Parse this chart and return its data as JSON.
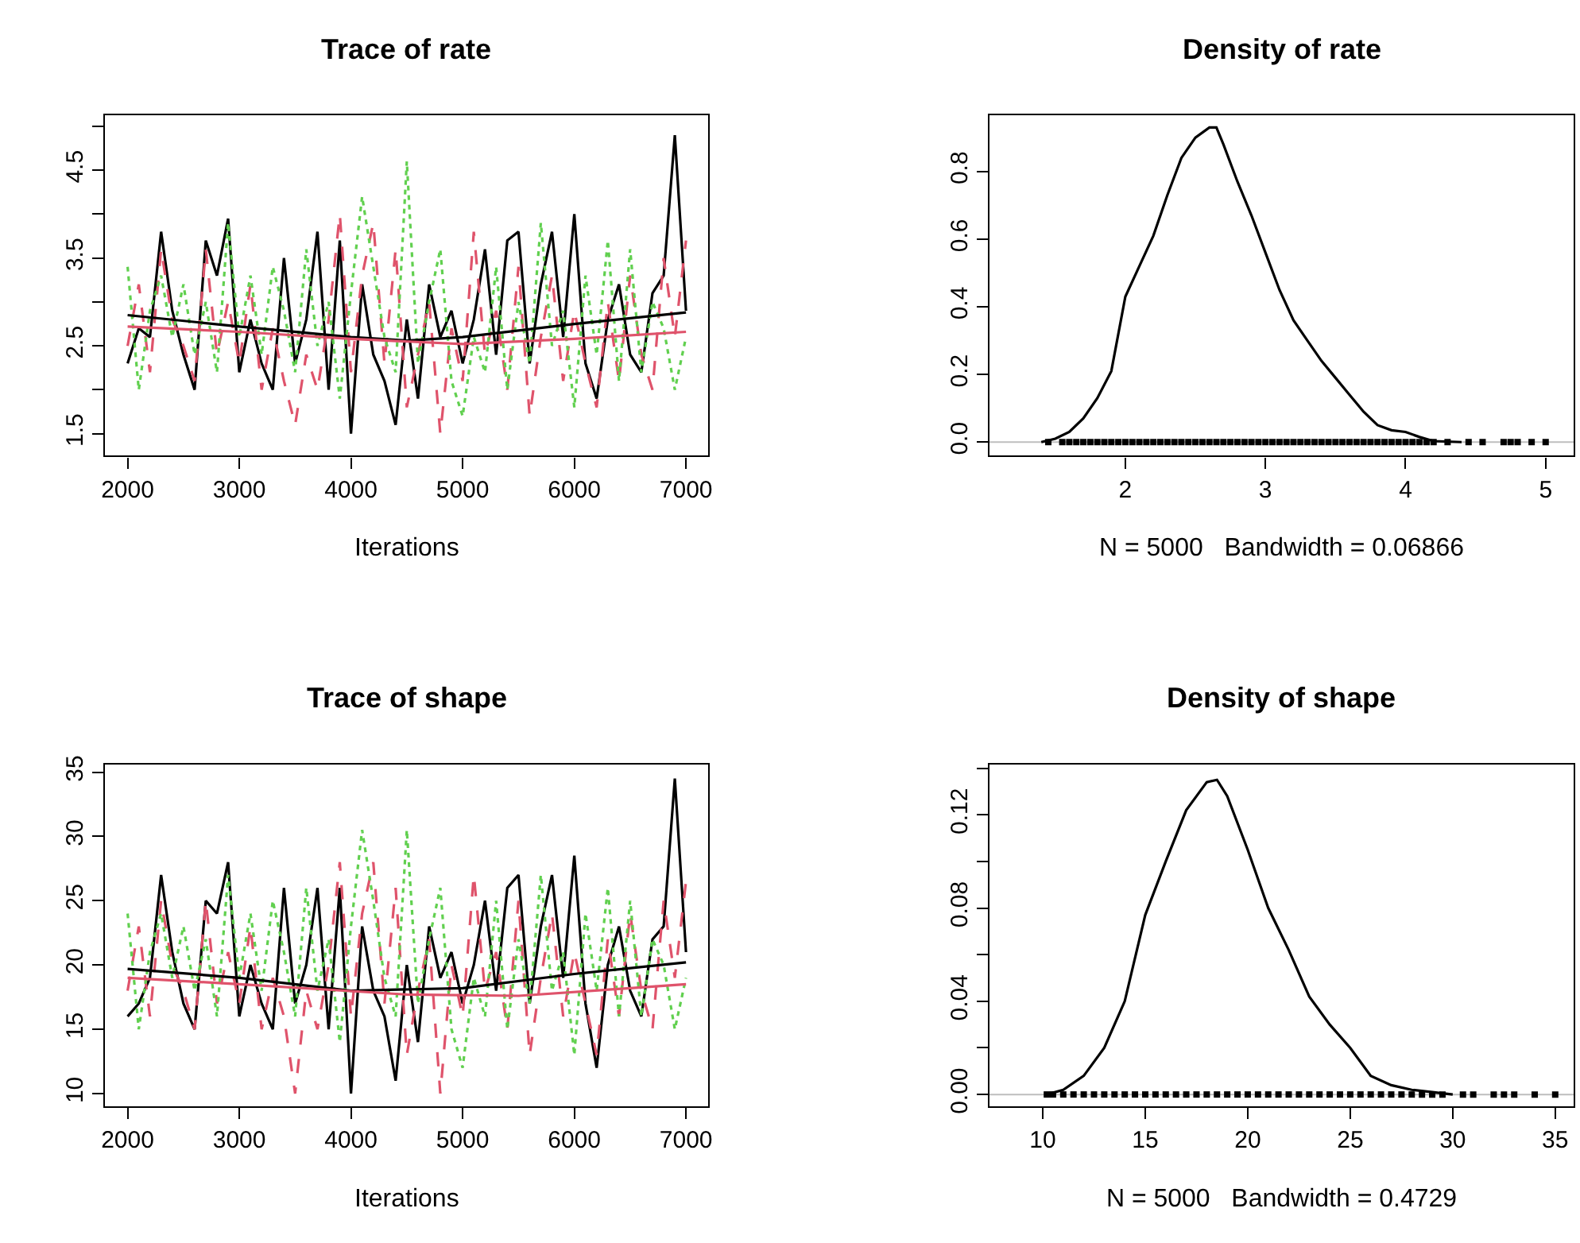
{
  "chart_data": [
    {
      "type": "line",
      "title": "Trace of rate",
      "xlabel": "Iterations",
      "x": [
        2000,
        2100,
        2200,
        2300,
        2400,
        2500,
        2600,
        2700,
        2800,
        2900,
        3000,
        3100,
        3200,
        3300,
        3400,
        3500,
        3600,
        3700,
        3800,
        3900,
        4000,
        4100,
        4200,
        4300,
        4400,
        4500,
        4600,
        4700,
        4800,
        4900,
        5000,
        5100,
        5200,
        5300,
        5400,
        5500,
        5600,
        5700,
        5800,
        5900,
        6000,
        6100,
        6200,
        6300,
        6400,
        6500,
        6600,
        6700,
        6800,
        6900,
        7000
      ],
      "series": [
        {
          "color": "#000000",
          "line_style": "solid",
          "values": [
            2.3,
            2.7,
            2.6,
            3.8,
            2.9,
            2.4,
            2.0,
            3.7,
            3.3,
            3.95,
            2.2,
            2.8,
            2.3,
            2.0,
            3.5,
            2.3,
            2.8,
            3.8,
            2.0,
            3.7,
            1.5,
            3.2,
            2.4,
            2.1,
            1.6,
            2.8,
            1.9,
            3.2,
            2.6,
            2.9,
            2.3,
            2.8,
            3.6,
            2.4,
            3.7,
            3.8,
            2.3,
            3.2,
            3.8,
            2.6,
            4.0,
            2.3,
            1.9,
            2.8,
            3.2,
            2.4,
            2.2,
            3.1,
            3.3,
            4.9,
            2.9
          ]
        },
        {
          "color": "#df536b",
          "line_style": "dashed",
          "values": [
            2.5,
            3.2,
            2.2,
            3.6,
            2.8,
            2.5,
            2.1,
            3.6,
            2.4,
            3.0,
            2.3,
            3.2,
            2.0,
            2.7,
            2.1,
            1.6,
            2.4,
            2.0,
            2.8,
            4.0,
            2.2,
            3.3,
            3.9,
            2.3,
            3.6,
            1.8,
            2.4,
            3.0,
            1.5,
            2.7,
            2.1,
            3.8,
            2.4,
            2.9,
            2.0,
            3.4,
            1.7,
            2.6,
            3.3,
            2.1,
            2.9,
            2.3,
            1.8,
            3.0,
            2.1,
            3.3,
            2.4,
            2.0,
            3.5,
            2.6,
            3.7
          ]
        },
        {
          "color": "#61d04f",
          "line_style": "dotted",
          "values": [
            3.4,
            2.0,
            2.9,
            3.3,
            2.6,
            3.2,
            2.4,
            3.0,
            2.2,
            3.9,
            2.6,
            3.3,
            2.4,
            3.4,
            2.9,
            2.2,
            3.6,
            2.5,
            3.0,
            1.9,
            3.1,
            4.2,
            3.4,
            2.6,
            2.2,
            4.6,
            2.3,
            3.0,
            3.6,
            2.1,
            1.7,
            2.6,
            2.2,
            3.4,
            2.0,
            3.0,
            2.3,
            3.9,
            2.5,
            2.9,
            1.8,
            3.3,
            2.4,
            3.7,
            2.1,
            3.6,
            2.2,
            3.0,
            2.7,
            2.0,
            2.6
          ]
        },
        {
          "x": [
            2000,
            3000,
            4000,
            4500,
            5000,
            6000,
            7000
          ],
          "color": "#000000",
          "line_style": "solid",
          "values": [
            2.85,
            2.72,
            2.6,
            2.56,
            2.6,
            2.75,
            2.88
          ]
        },
        {
          "x": [
            2000,
            3000,
            4000,
            5000,
            6000,
            7000
          ],
          "color": "#df536b",
          "line_style": "solid",
          "values": [
            2.72,
            2.66,
            2.58,
            2.52,
            2.58,
            2.66
          ]
        }
      ],
      "xlim": [
        1800,
        7200
      ],
      "xticks": [
        2000,
        3000,
        4000,
        5000,
        6000,
        7000
      ],
      "ylim": [
        1.25,
        5.13
      ],
      "yticks": [
        1.5,
        {
          "value": 2,
          "label": null
        },
        2.5,
        {
          "value": 3,
          "label": null
        },
        3.5,
        {
          "value": 4,
          "label": null
        },
        4.5,
        {
          "value": 5,
          "label": null
        }
      ]
    },
    {
      "type": "line",
      "title": "Density of rate",
      "xlabel": "N = 5000   Bandwidth = 0.06866",
      "series": [
        {
          "x": [
            1.4,
            1.5,
            1.6,
            1.7,
            1.8,
            1.9,
            2.0,
            2.1,
            2.2,
            2.3,
            2.4,
            2.5,
            2.6,
            2.65,
            2.7,
            2.8,
            2.9,
            3.0,
            3.1,
            3.2,
            3.3,
            3.4,
            3.5,
            3.6,
            3.7,
            3.8,
            3.9,
            4.0,
            4.1,
            4.2,
            4.4
          ],
          "color": "#000000",
          "values": [
            0,
            0.01,
            0.03,
            0.07,
            0.13,
            0.21,
            0.43,
            0.52,
            0.61,
            0.73,
            0.84,
            0.9,
            0.93,
            0.93,
            0.88,
            0.77,
            0.67,
            0.56,
            0.45,
            0.36,
            0.3,
            0.24,
            0.19,
            0.14,
            0.09,
            0.05,
            0.035,
            0.03,
            0.015,
            0.003,
            0
          ]
        },
        {
          "type": "scatter",
          "marker": "square",
          "x": [
            1.45,
            1.55,
            1.6,
            1.65,
            1.7,
            1.75,
            1.8,
            1.85,
            1.9,
            1.95,
            2.0,
            2.05,
            2.1,
            2.15,
            2.2,
            2.25,
            2.3,
            2.35,
            2.4,
            2.45,
            2.5,
            2.55,
            2.6,
            2.65,
            2.7,
            2.75,
            2.8,
            2.85,
            2.9,
            2.95,
            3.0,
            3.05,
            3.1,
            3.15,
            3.2,
            3.25,
            3.3,
            3.35,
            3.4,
            3.45,
            3.5,
            3.55,
            3.6,
            3.65,
            3.7,
            3.75,
            3.8,
            3.85,
            3.9,
            3.95,
            4.0,
            4.05,
            4.1,
            4.15,
            4.2,
            4.3,
            4.45,
            4.55,
            4.7,
            4.75,
            4.8,
            4.9,
            5.0
          ],
          "color": "#000000",
          "values": [
            0,
            0,
            0,
            0,
            0,
            0,
            0,
            0,
            0,
            0,
            0,
            0,
            0,
            0,
            0,
            0,
            0,
            0,
            0,
            0,
            0,
            0,
            0,
            0,
            0,
            0,
            0,
            0,
            0,
            0,
            0,
            0,
            0,
            0,
            0,
            0,
            0,
            0,
            0,
            0,
            0,
            0,
            0,
            0,
            0,
            0,
            0,
            0,
            0,
            0,
            0,
            0,
            0,
            0,
            0,
            0,
            0,
            0,
            0,
            0,
            0,
            0,
            0
          ]
        }
      ],
      "ref_lines": [
        {
          "axis": "y",
          "value": 0,
          "color": "#bebebe"
        }
      ],
      "xlim": [
        1.03,
        5.2
      ],
      "xticks": [
        2,
        3,
        4,
        5
      ],
      "ylim": [
        -0.04,
        0.967
      ],
      "yticks": [
        {
          "value": 0,
          "label": "0.0"
        },
        0.2,
        0.4,
        0.6,
        0.8
      ]
    },
    {
      "type": "line",
      "title": "Trace of shape",
      "xlabel": "Iterations",
      "x": [
        2000,
        2100,
        2200,
        2300,
        2400,
        2500,
        2600,
        2700,
        2800,
        2900,
        3000,
        3100,
        3200,
        3300,
        3400,
        3500,
        3600,
        3700,
        3800,
        3900,
        4000,
        4100,
        4200,
        4300,
        4400,
        4500,
        4600,
        4700,
        4800,
        4900,
        5000,
        5100,
        5200,
        5300,
        5400,
        5500,
        5600,
        5700,
        5800,
        5900,
        6000,
        6100,
        6200,
        6300,
        6400,
        6500,
        6600,
        6700,
        6800,
        6900,
        7000
      ],
      "series": [
        {
          "color": "#000000",
          "line_style": "solid",
          "values": [
            16,
            17,
            19,
            27,
            21,
            17,
            15,
            25,
            24,
            28,
            16,
            20,
            17,
            15,
            26,
            17,
            20,
            26,
            15,
            26,
            10,
            23,
            18,
            16,
            11,
            20,
            14,
            23,
            19,
            21,
            17,
            20,
            25,
            18,
            26,
            27,
            17,
            23,
            27,
            19,
            28.5,
            17,
            12,
            20,
            23,
            18,
            16,
            22,
            23,
            34.5,
            21
          ]
        },
        {
          "color": "#df536b",
          "line_style": "dashed",
          "values": [
            18,
            23,
            16,
            25,
            20,
            18,
            15,
            25,
            17,
            21,
            17,
            23,
            15,
            19,
            16,
            10,
            18,
            15,
            20,
            28,
            16,
            24,
            28,
            17,
            26,
            13,
            18,
            22,
            10,
            20,
            16,
            27,
            18,
            21,
            15,
            25,
            13,
            19,
            24,
            16,
            21,
            17,
            13,
            22,
            16,
            24,
            18,
            15,
            25,
            19,
            26.5
          ]
        },
        {
          "color": "#61d04f",
          "line_style": "dotted",
          "values": [
            24,
            15,
            21,
            24,
            19,
            23,
            18,
            22,
            16,
            27,
            19,
            24,
            18,
            25,
            21,
            16,
            26,
            18,
            22,
            14,
            23,
            30.5,
            25,
            19,
            16,
            30.5,
            17,
            22,
            26,
            15,
            12,
            19,
            16,
            25,
            15,
            22,
            17,
            27,
            18,
            21,
            13,
            24,
            18,
            26,
            16,
            25,
            16,
            22,
            20,
            15,
            19
          ]
        },
        {
          "x": [
            2000,
            3000,
            4000,
            5000,
            6000,
            7000
          ],
          "color": "#000000",
          "line_style": "solid",
          "values": [
            19.7,
            19.0,
            18.0,
            18.2,
            19.3,
            20.2
          ]
        },
        {
          "x": [
            2000,
            3000,
            4500,
            5500,
            6500,
            7000
          ],
          "color": "#df536b",
          "line_style": "solid",
          "values": [
            19.0,
            18.5,
            17.7,
            17.6,
            18.2,
            18.5
          ]
        }
      ],
      "xlim": [
        1800,
        7200
      ],
      "xticks": [
        2000,
        3000,
        4000,
        5000,
        6000,
        7000
      ],
      "ylim": [
        9.0,
        35.6
      ],
      "yticks": [
        10,
        15,
        20,
        25,
        30,
        35
      ]
    },
    {
      "type": "line",
      "title": "Density of shape",
      "xlabel": "N = 5000   Bandwidth = 0.4729",
      "series": [
        {
          "x": [
            10.2,
            11,
            12,
            13,
            14,
            15,
            16,
            17,
            18,
            18.5,
            19,
            20,
            21,
            22,
            23,
            24,
            25,
            26,
            27,
            28,
            29,
            30
          ],
          "color": "#000000",
          "values": [
            0,
            0.002,
            0.008,
            0.02,
            0.04,
            0.077,
            0.1,
            0.122,
            0.134,
            0.135,
            0.128,
            0.105,
            0.08,
            0.062,
            0.042,
            0.03,
            0.02,
            0.008,
            0.004,
            0.002,
            0.001,
            0
          ]
        },
        {
          "type": "scatter",
          "marker": "square",
          "x": [
            10.2,
            10.5,
            11,
            11.5,
            12,
            12.5,
            13,
            13.5,
            14,
            14.5,
            15,
            15.5,
            16,
            16.5,
            17,
            17.5,
            18,
            18.5,
            19,
            19.5,
            20,
            20.5,
            21,
            21.5,
            22,
            22.5,
            23,
            23.5,
            24,
            24.5,
            25,
            25.5,
            26,
            26.5,
            27,
            27.5,
            28,
            28.5,
            29,
            29.5,
            30.5,
            31,
            32,
            32.5,
            33,
            34,
            35
          ],
          "color": "#000000",
          "values": [
            0,
            0,
            0,
            0,
            0,
            0,
            0,
            0,
            0,
            0,
            0,
            0,
            0,
            0,
            0,
            0,
            0,
            0,
            0,
            0,
            0,
            0,
            0,
            0,
            0,
            0,
            0,
            0,
            0,
            0,
            0,
            0,
            0,
            0,
            0,
            0,
            0,
            0,
            0,
            0,
            0,
            0,
            0,
            0,
            0,
            0,
            0
          ]
        }
      ],
      "ref_lines": [
        {
          "axis": "y",
          "value": 0,
          "color": "#bebebe"
        }
      ],
      "xlim": [
        7.4,
        35.9
      ],
      "xticks": [
        10,
        15,
        20,
        25,
        30,
        35
      ],
      "ylim": [
        -0.0051,
        0.1416
      ],
      "yticks": [
        {
          "value": 0,
          "label": "0.00"
        },
        {
          "value": 0.02,
          "label": null
        },
        0.04,
        {
          "value": 0.06,
          "label": null
        },
        0.08,
        {
          "value": 0.1,
          "label": null
        },
        0.12,
        {
          "value": 0.14,
          "label": null
        }
      ]
    }
  ]
}
